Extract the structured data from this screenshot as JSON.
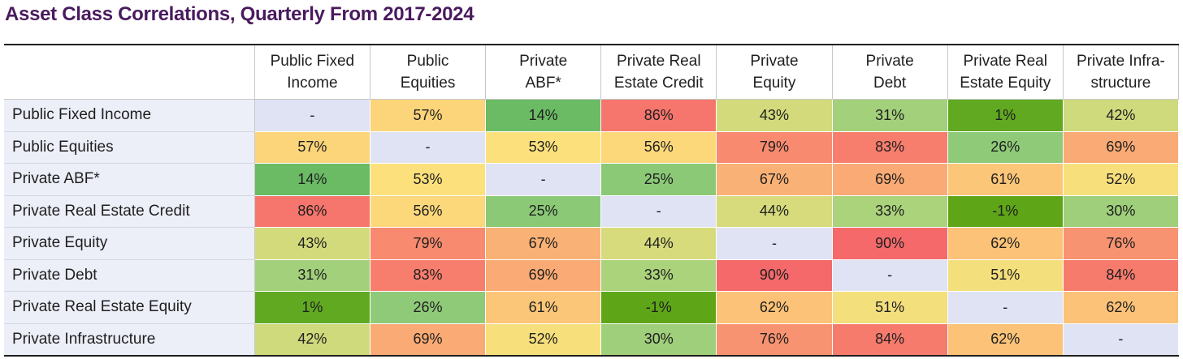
{
  "title": "Asset Class Correlations, Quarterly From 2017-2024",
  "chart_data": {
    "type": "heatmap",
    "title": "Asset Class Correlations, Quarterly From 2017-2024",
    "columns": [
      [
        "Public Fixed",
        "Income"
      ],
      [
        "Public",
        "Equities"
      ],
      [
        "Private",
        "ABF*"
      ],
      [
        "Private Real",
        "Estate Credit"
      ],
      [
        "Private",
        "Equity"
      ],
      [
        "Private",
        "Debt"
      ],
      [
        "Private Real",
        "Estate Equity"
      ],
      [
        "Private Infra-",
        "structure"
      ]
    ],
    "rows": [
      "Public Fixed Income",
      "Public Equities",
      "Private ABF*",
      "Private Real Estate Credit",
      "Private Equity",
      "Private Debt",
      "Private Real Estate Equity",
      "Private Infrastructure"
    ],
    "values": [
      [
        null,
        57,
        14,
        86,
        43,
        31,
        1,
        42
      ],
      [
        57,
        null,
        53,
        56,
        79,
        83,
        26,
        69
      ],
      [
        14,
        53,
        null,
        25,
        67,
        69,
        61,
        52
      ],
      [
        86,
        56,
        25,
        null,
        44,
        33,
        -1,
        30
      ],
      [
        43,
        79,
        67,
        44,
        null,
        90,
        62,
        76
      ],
      [
        31,
        83,
        69,
        33,
        90,
        null,
        51,
        84
      ],
      [
        1,
        26,
        61,
        -1,
        62,
        51,
        null,
        62
      ],
      [
        42,
        69,
        52,
        30,
        76,
        84,
        62,
        null
      ]
    ],
    "unit": "%",
    "diagonal_label": "-",
    "colors": {
      "diagonal": "#dfe3f4",
      "row_label_bg": "#eceef8",
      "scale": [
        "#5ea617",
        "#6cbf74",
        "#b5d67c",
        "#fde07c",
        "#f9a073",
        "#f5696a"
      ]
    }
  }
}
